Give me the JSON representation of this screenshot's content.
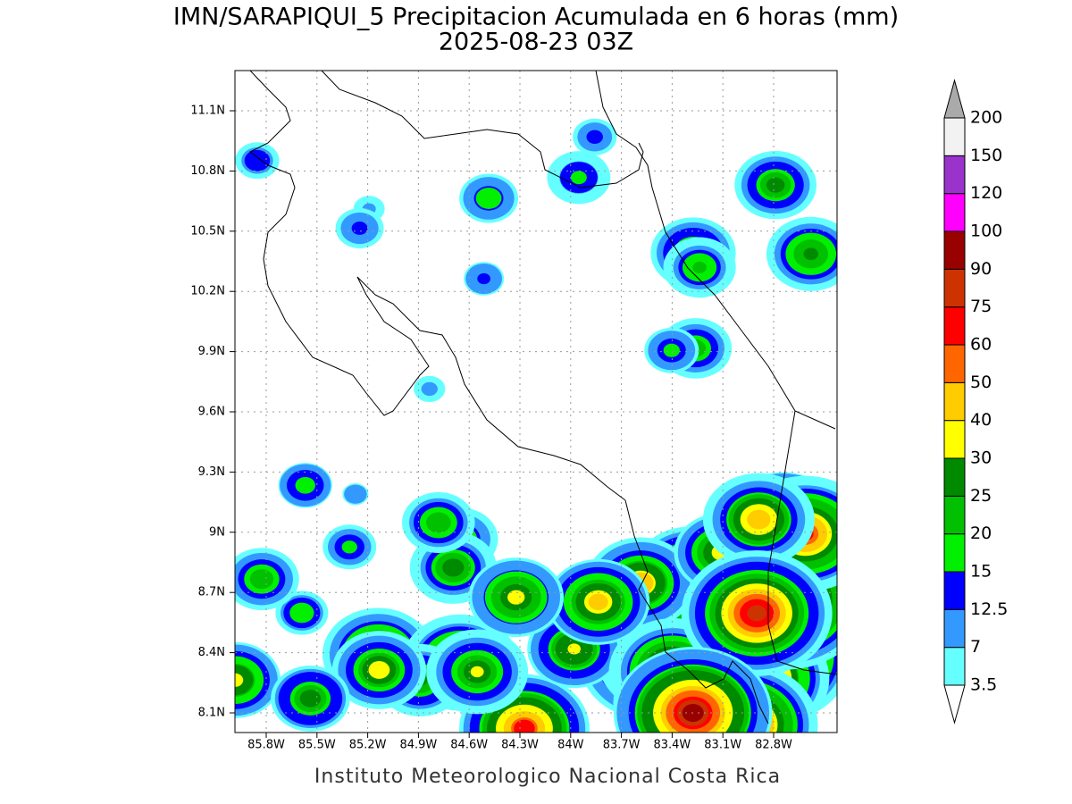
{
  "title": "IMN/SARAPIQUI_5 Precipitacion Acumulada en 6 horas (mm)",
  "subtitle": "2025-08-23 03Z",
  "footer": "Instituto Meteorologico Nacional Costa Rica",
  "map": {
    "lon_labels": [
      "85.8W",
      "85.5W",
      "85.2W",
      "84.9W",
      "84.6W",
      "84.3W",
      "84W",
      "83.7W",
      "83.4W",
      "83.1W",
      "82.8W"
    ],
    "lat_labels": [
      "11.1N",
      "10.8N",
      "10.5N",
      "10.2N",
      "9.9N",
      "9.6N",
      "9.3N",
      "9N",
      "8.7N",
      "8.4N",
      "8.1N"
    ]
  },
  "colorbar": {
    "levels": [
      3.5,
      7,
      12.5,
      15,
      20,
      25,
      30,
      40,
      50,
      60,
      75,
      90,
      100,
      120,
      150,
      200
    ],
    "colors": [
      "#66ffff",
      "#3399ff",
      "#0000ff",
      "#00f000",
      "#00c000",
      "#008a00",
      "#ffff00",
      "#ffcc00",
      "#ff6600",
      "#ff0000",
      "#cc3300",
      "#990000",
      "#ff00ff",
      "#9933cc",
      "#f2f2f2"
    ],
    "below_color": "#ffffff",
    "above_color": "#aaaaaa"
  }
}
